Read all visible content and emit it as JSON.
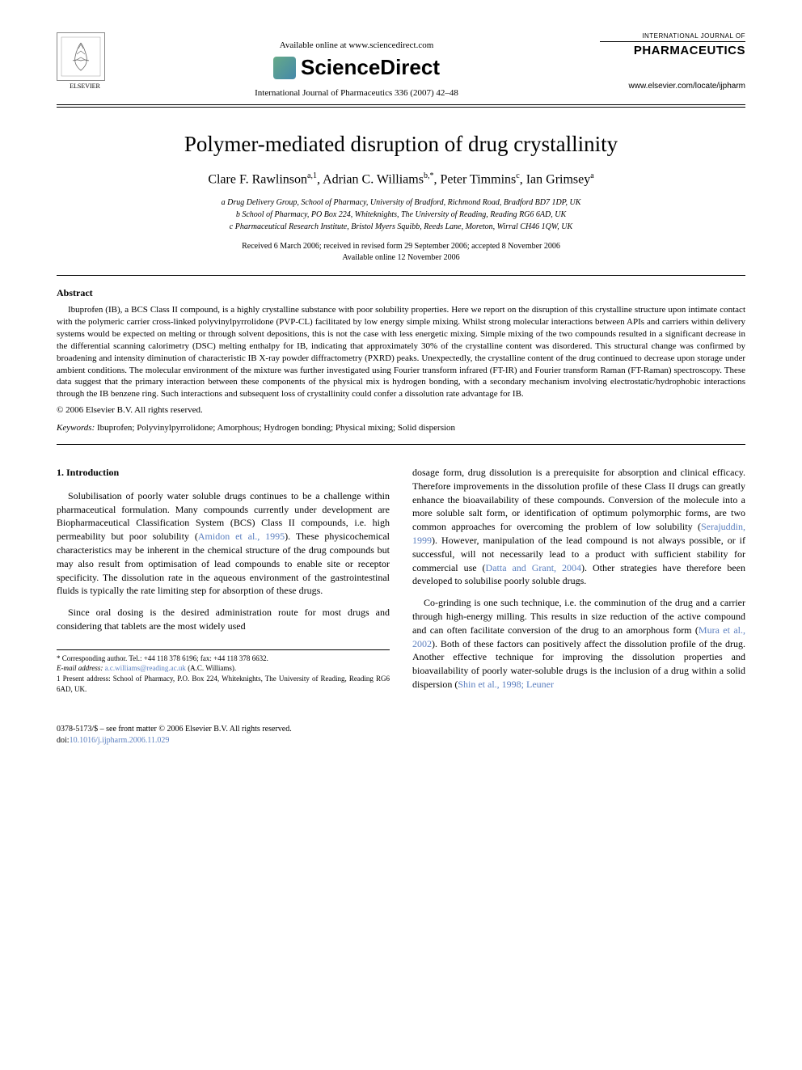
{
  "header": {
    "publisher": "ELSEVIER",
    "available_online": "Available online at www.sciencedirect.com",
    "sciencedirect": "ScienceDirect",
    "journal_ref": "International Journal of Pharmaceutics 336 (2007) 42–48",
    "brand_top": "INTERNATIONAL JOURNAL OF",
    "brand_main": "PHARMACEUTICS",
    "journal_url": "www.elsevier.com/locate/ijpharm"
  },
  "title": "Polymer-mediated disruption of drug crystallinity",
  "authors_html": "Clare F. Rawlinson<sup>a,1</sup>, Adrian C. Williams<sup>b,*</sup>, Peter Timmins<sup>c</sup>, Ian Grimsey<sup>a</sup>",
  "affiliations": {
    "a": "a Drug Delivery Group, School of Pharmacy, University of Bradford, Richmond Road, Bradford BD7 1DP, UK",
    "b": "b School of Pharmacy, PO Box 224, Whiteknights, The University of Reading, Reading RG6 6AD, UK",
    "c": "c Pharmaceutical Research Institute, Bristol Myers Squibb, Reeds Lane, Moreton, Wirral CH46 1QW, UK"
  },
  "dates": {
    "received": "Received 6 March 2006; received in revised form 29 September 2006; accepted 8 November 2006",
    "available": "Available online 12 November 2006"
  },
  "abstract": {
    "heading": "Abstract",
    "text": "Ibuprofen (IB), a BCS Class II compound, is a highly crystalline substance with poor solubility properties. Here we report on the disruption of this crystalline structure upon intimate contact with the polymeric carrier cross-linked polyvinylpyrrolidone (PVP-CL) facilitated by low energy simple mixing. Whilst strong molecular interactions between APIs and carriers within delivery systems would be expected on melting or through solvent depositions, this is not the case with less energetic mixing. Simple mixing of the two compounds resulted in a significant decrease in the differential scanning calorimetry (DSC) melting enthalpy for IB, indicating that approximately 30% of the crystalline content was disordered. This structural change was confirmed by broadening and intensity diminution of characteristic IB X-ray powder diffractometry (PXRD) peaks. Unexpectedly, the crystalline content of the drug continued to decrease upon storage under ambient conditions. The molecular environment of the mixture was further investigated using Fourier transform infrared (FT-IR) and Fourier transform Raman (FT-Raman) spectroscopy. These data suggest that the primary interaction between these components of the physical mix is hydrogen bonding, with a secondary mechanism involving electrostatic/hydrophobic interactions through the IB benzene ring. Such interactions and subsequent loss of crystallinity could confer a dissolution rate advantage for IB.",
    "copyright": "© 2006 Elsevier B.V. All rights reserved."
  },
  "keywords": {
    "label": "Keywords:",
    "text": "Ibuprofen; Polyvinylpyrrolidone; Amorphous; Hydrogen bonding; Physical mixing; Solid dispersion"
  },
  "section1": {
    "heading": "1. Introduction",
    "p1a": "Solubilisation of poorly water soluble drugs continues to be a challenge within pharmaceutical formulation. Many compounds currently under development are Biopharmaceutical Classification System (BCS) Class II compounds, i.e. high permeability but poor solubility (",
    "p1_link1": "Amidon et al., 1995",
    "p1b": "). These physicochemical characteristics may be inherent in the chemical structure of the drug compounds but may also result from optimisation of lead compounds to enable site or receptor specificity. The dissolution rate in the aqueous environment of the gastrointestinal fluids is typically the rate limiting step for absorption of these drugs.",
    "p2": "Since oral dosing is the desired administration route for most drugs and considering that tablets are the most widely used",
    "p3a": "dosage form, drug dissolution is a prerequisite for absorption and clinical efficacy. Therefore improvements in the dissolution profile of these Class II drugs can greatly enhance the bioavailability of these compounds. Conversion of the molecule into a more soluble salt form, or identification of optimum polymorphic forms, are two common approaches for overcoming the problem of low solubility (",
    "p3_link1": "Serajuddin, 1999",
    "p3b": "). However, manipulation of the lead compound is not always possible, or if successful, will not necessarily lead to a product with sufficient stability for commercial use (",
    "p3_link2": "Datta and Grant, 2004",
    "p3c": "). Other strategies have therefore been developed to solubilise poorly soluble drugs.",
    "p4a": "Co-grinding is one such technique, i.e. the comminution of the drug and a carrier through high-energy milling. This results in size reduction of the active compound and can often facilitate conversion of the drug to an amorphous form (",
    "p4_link1": "Mura et al., 2002",
    "p4b": "). Both of these factors can positively affect the dissolution profile of the drug. Another effective technique for improving the dissolution properties and bioavailability of poorly water-soluble drugs is the inclusion of a drug within a solid dispersion (",
    "p4_link2": "Shin et al., 1998; Leuner"
  },
  "footnotes": {
    "corr": "* Corresponding author. Tel.: +44 118 378 6196; fax: +44 118 378 6632.",
    "email_label": "E-mail address:",
    "email": "a.c.williams@reading.ac.uk",
    "email_who": "(A.C. Williams).",
    "present": "1 Present address: School of Pharmacy, P.O. Box 224, Whiteknights, The University of Reading, Reading RG6 6AD, UK."
  },
  "footer": {
    "line1": "0378-5173/$ – see front matter © 2006 Elsevier B.V. All rights reserved.",
    "doi_label": "doi:",
    "doi": "10.1016/j.ijpharm.2006.11.029"
  },
  "colors": {
    "link": "#5b7fbf",
    "text": "#000000",
    "background": "#ffffff"
  },
  "typography": {
    "title_fontsize": 27,
    "authors_fontsize": 16,
    "body_fontsize": 12,
    "abstract_fontsize": 11,
    "footnote_fontsize": 9,
    "font_family": "Georgia, Times New Roman, serif"
  }
}
